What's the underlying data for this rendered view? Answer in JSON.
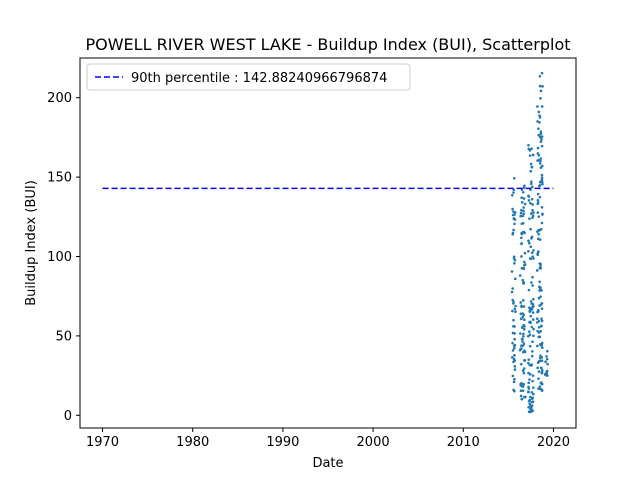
{
  "chart_data": {
    "type": "scatter",
    "title": "POWELL RIVER WEST LAKE - Buildup Index (BUI), Scatterplot",
    "xlabel": "Date",
    "ylabel": "Buildup Index (BUI)",
    "xlim": [
      1967.5,
      2022.5
    ],
    "ylim": [
      -8,
      225
    ],
    "x_ticks": [
      1970,
      1980,
      1990,
      2000,
      2010,
      2020
    ],
    "y_ticks": [
      0,
      50,
      100,
      150,
      200
    ],
    "grid": false,
    "legend_position": "top-left",
    "reference_line": {
      "label": "90th percentile : 142.88240966796874",
      "value": 142.88240966796874,
      "x_range": [
        1970,
        2020
      ],
      "color": "#0000ff",
      "style": "dashed"
    },
    "series": [
      {
        "color": "#1f77b4",
        "clusters": [
          {
            "x_range": [
              2015.4,
              2015.8
            ],
            "y_range": [
              15,
              150
            ],
            "count": 55
          },
          {
            "x_range": [
              2016.3,
              2016.9
            ],
            "y_range": [
              10,
              145
            ],
            "count": 90
          },
          {
            "x_range": [
              2017.2,
              2017.8
            ],
            "y_range": [
              2,
              172
            ],
            "count": 110
          },
          {
            "x_range": [
              2018.2,
              2018.8
            ],
            "y_range": [
              15,
              216
            ],
            "count": 130
          },
          {
            "x_range": [
              2019.1,
              2019.4
            ],
            "y_range": [
              25,
              43
            ],
            "count": 12
          }
        ]
      }
    ]
  }
}
